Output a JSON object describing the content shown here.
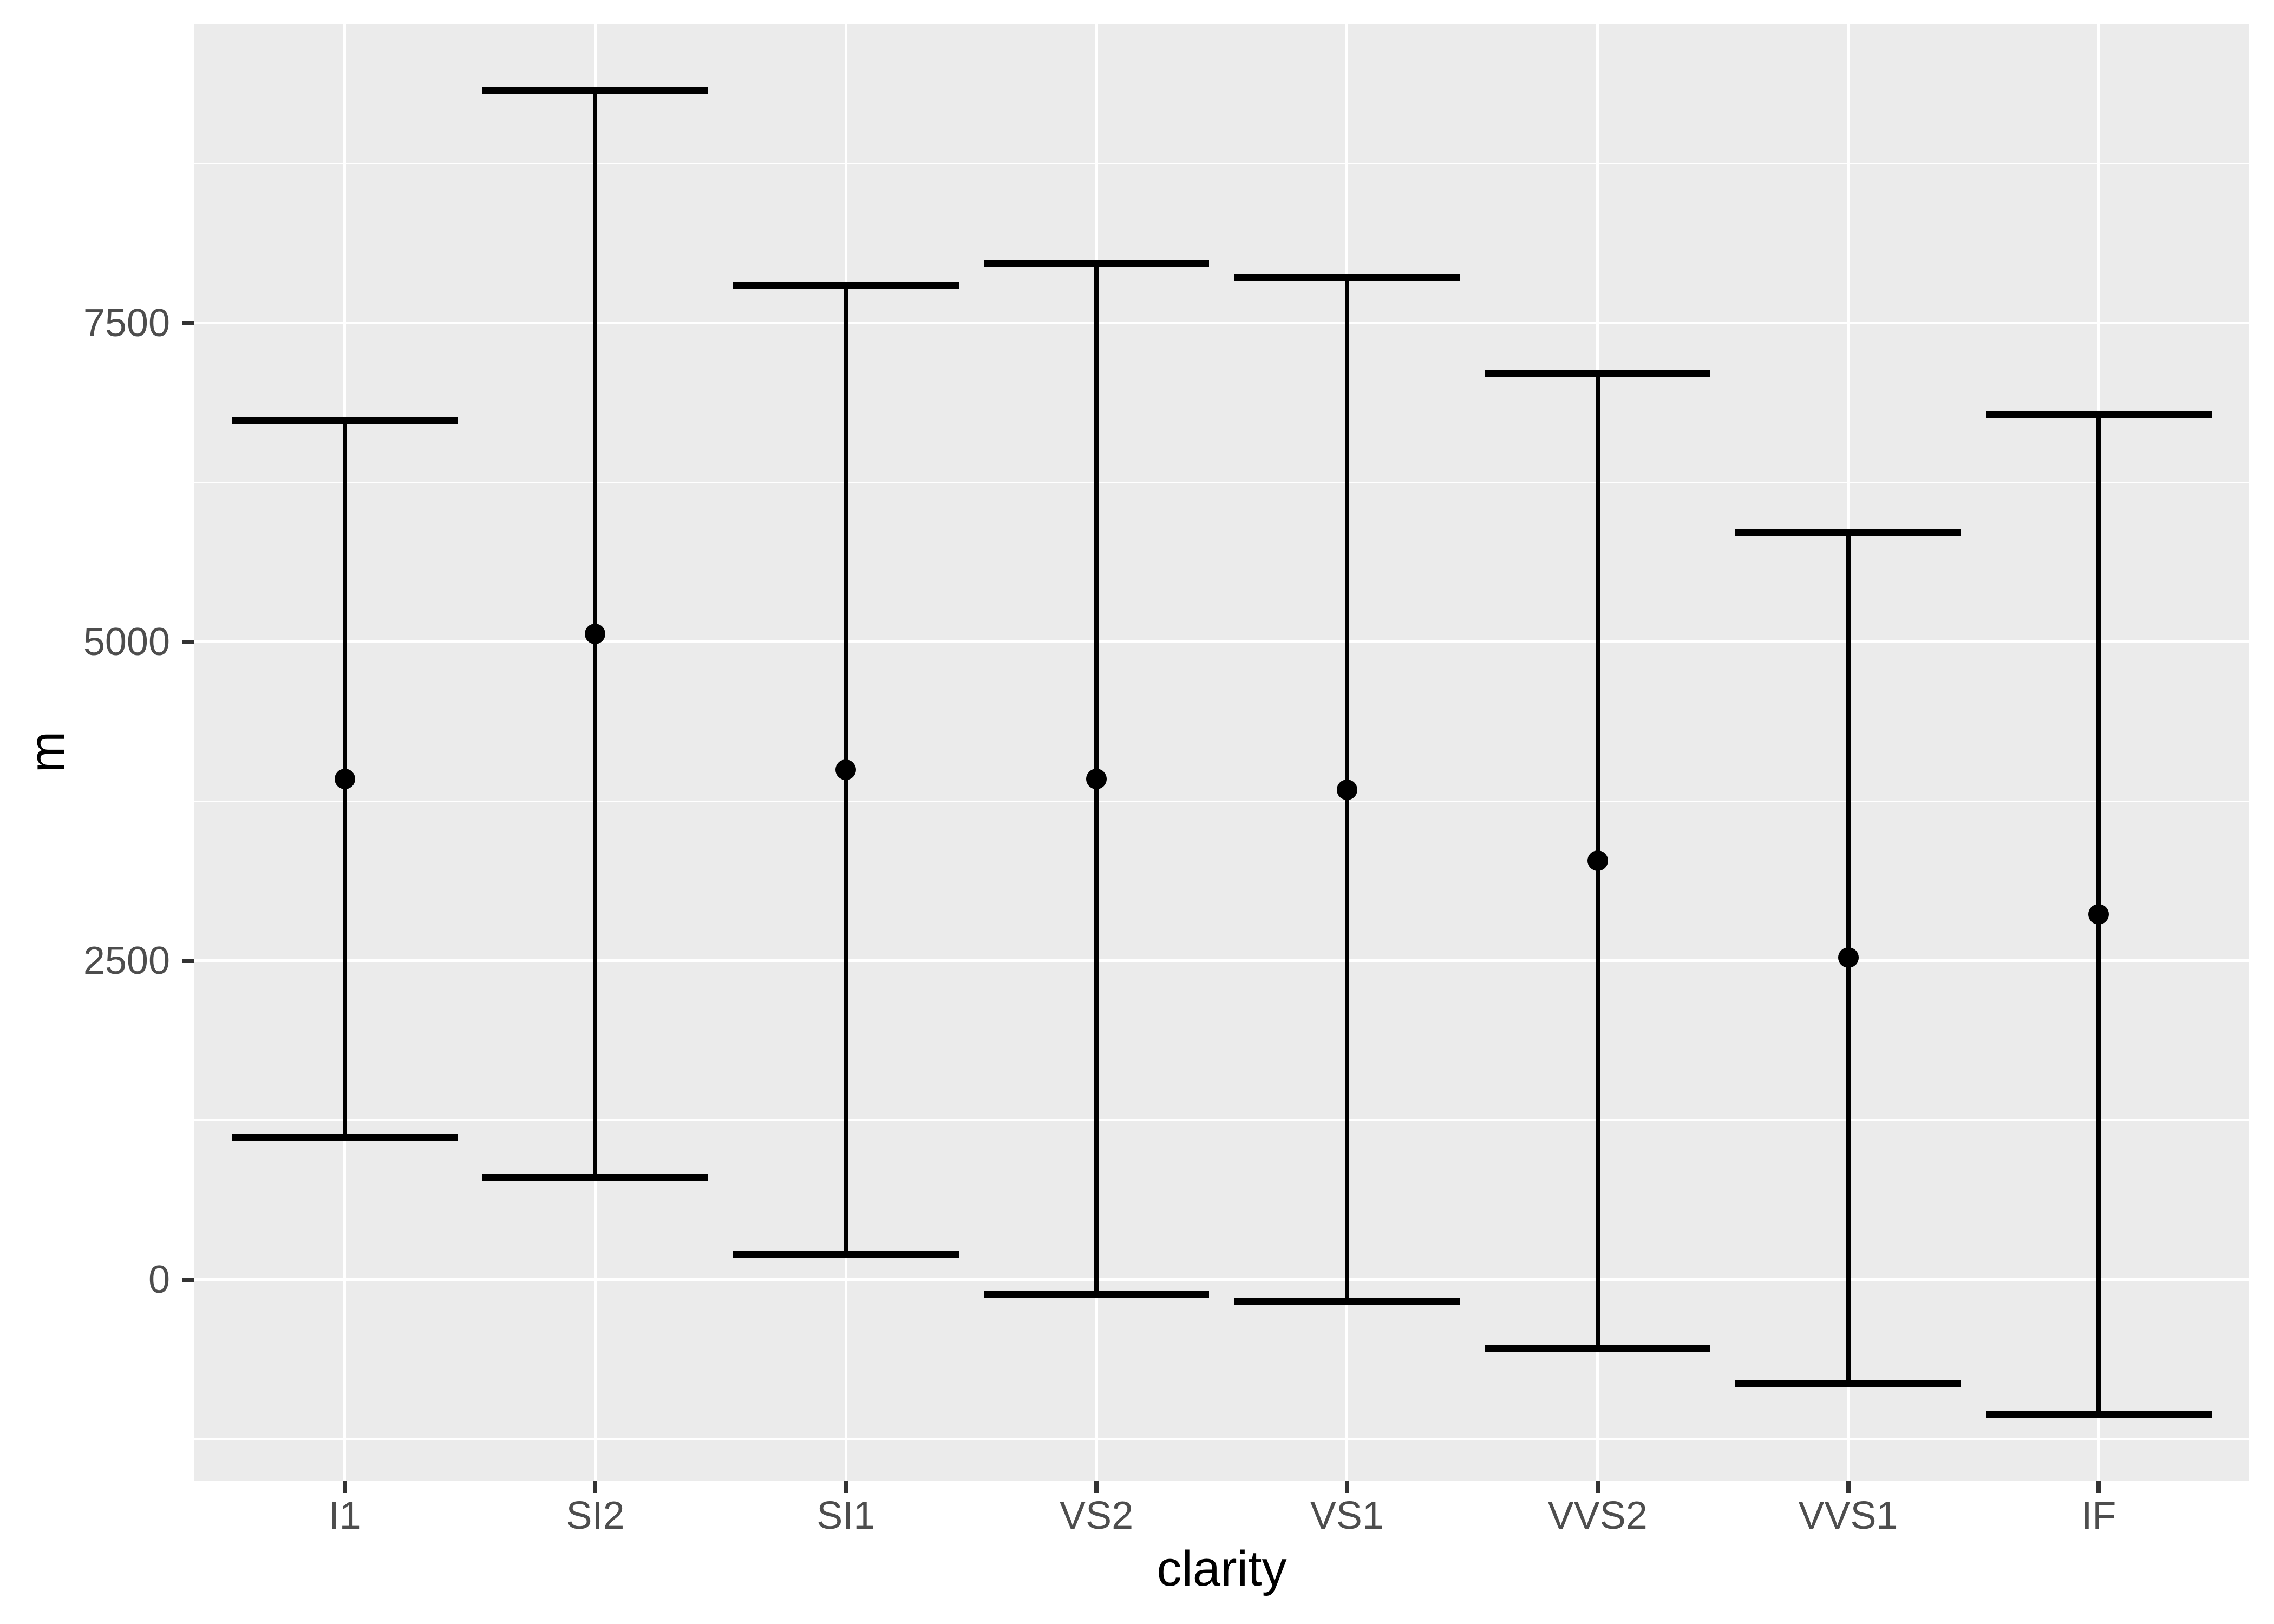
{
  "chart_data": {
    "type": "pointrange",
    "description": "Mean with error bars (mean - sd to mean + sd) of diamond price by clarity",
    "categories": [
      "I1",
      "SI2",
      "SI1",
      "VS2",
      "VS1",
      "VVS2",
      "VVS1",
      "IF"
    ],
    "points": [
      {
        "category": "I1",
        "mean": 3924,
        "lower": 1117,
        "upper": 6731
      },
      {
        "category": "SI2",
        "mean": 5063,
        "lower": 800,
        "upper": 9326
      },
      {
        "category": "SI1",
        "mean": 3996,
        "lower": 197,
        "upper": 7795
      },
      {
        "category": "VS2",
        "mean": 3925,
        "lower": -117,
        "upper": 7967
      },
      {
        "category": "VS1",
        "mean": 3839,
        "lower": -172,
        "upper": 7851
      },
      {
        "category": "VVS2",
        "mean": 3284,
        "lower": -538,
        "upper": 7106
      },
      {
        "category": "VVS1",
        "mean": 2523,
        "lower": -812,
        "upper": 5858
      },
      {
        "category": "IF",
        "mean": 2865,
        "lower": -1056,
        "upper": 6785
      }
    ],
    "title": "",
    "xlabel": "clarity",
    "ylabel": "m",
    "ylim": [
      -1575,
      9845
    ],
    "yticks_major": [
      0,
      2500,
      5000,
      7500
    ],
    "ytick_labels": [
      "0",
      "2500",
      "5000",
      "7500"
    ],
    "yticks_minor": [
      -1250,
      1250,
      3750,
      6250,
      8750
    ],
    "grid": "white major and minor horizontal gridlines; white vertical gridline at each category; grey panel",
    "legend": "none"
  },
  "style": {
    "panel_bg": "#EBEBEB",
    "grid_color": "#FFFFFF",
    "axis_text_color": "#4D4D4D",
    "axis_title_color": "#000000",
    "tick_color": "#333333",
    "data_color": "#000000"
  }
}
